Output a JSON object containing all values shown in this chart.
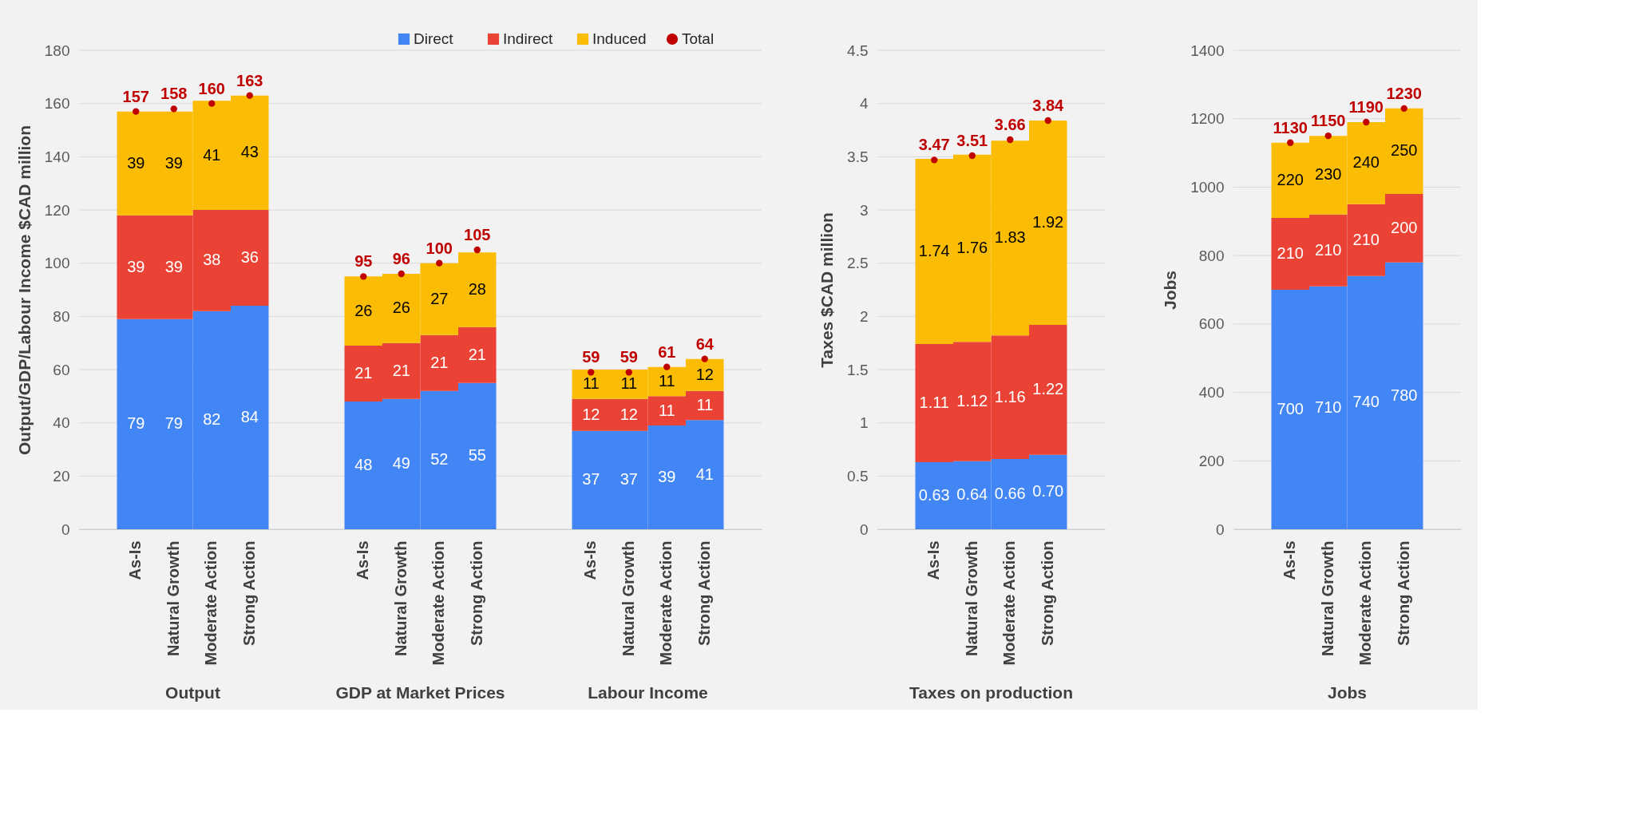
{
  "chart_data": [
    {
      "type": "bar",
      "stacked": true,
      "xlabel": "Output",
      "ylabel": "Output/GDP/Labour Income $CAD million",
      "categories": [
        "As-Is",
        "Natural Growth",
        "Moderate Action",
        "Strong Action"
      ],
      "ylim": [
        0,
        180
      ],
      "yticks": [
        0,
        20,
        40,
        60,
        80,
        100,
        120,
        140,
        160,
        180
      ],
      "grid": "y",
      "legend": "top right",
      "series": [
        {
          "name": "Direct",
          "color": "#4285f4",
          "values": [
            79,
            79,
            82,
            84
          ],
          "value_labels": [
            "79",
            "79",
            "82",
            "84"
          ]
        },
        {
          "name": "Indirect",
          "color": "#ea4335",
          "values": [
            39,
            39,
            38,
            36
          ],
          "value_labels": [
            "39",
            "39",
            "38",
            "36"
          ]
        },
        {
          "name": "Induced",
          "color": "#fbbc04",
          "values": [
            39,
            39,
            41,
            43
          ],
          "value_labels": [
            "39",
            "39",
            "41",
            "43"
          ]
        },
        {
          "name": "Total",
          "type": "scatter",
          "color": "#c00000",
          "values": [
            157,
            158,
            160,
            163
          ],
          "value_labels": [
            "157",
            "158",
            "160",
            "163"
          ]
        }
      ]
    },
    {
      "type": "bar",
      "stacked": true,
      "xlabel": "GDP at Market Prices",
      "categories": [
        "As-Is",
        "Natural Growth",
        "Moderate Action",
        "Strong Action"
      ],
      "ylim": [
        0,
        180
      ],
      "yticks": [
        0,
        20,
        40,
        60,
        80,
        100,
        120,
        140,
        160,
        180
      ],
      "grid": "y",
      "tick_labels": "x",
      "series": [
        {
          "color": "#4285f4",
          "values": [
            48,
            49,
            52,
            55
          ],
          "value_labels": [
            "48",
            "49",
            "52",
            "55"
          ]
        },
        {
          "color": "#ea4335",
          "values": [
            21,
            21,
            21,
            21
          ],
          "value_labels": [
            "21",
            "21",
            "21",
            "21"
          ]
        },
        {
          "color": "#fbbc04",
          "values": [
            26,
            26,
            27,
            28
          ],
          "value_labels": [
            "26",
            "26",
            "27",
            "28"
          ]
        },
        {
          "type": "scatter",
          "color": "#c00000",
          "values": [
            95,
            96,
            100,
            105
          ],
          "value_labels": [
            "95",
            "96",
            "100",
            "105"
          ]
        }
      ]
    },
    {
      "type": "bar",
      "stacked": true,
      "xlabel": "Labour Income",
      "categories": [
        "As-Is",
        "Natural Growth",
        "Moderate Action",
        "Strong Action"
      ],
      "ylim": [
        0,
        180
      ],
      "yticks": [
        0,
        20,
        40,
        60,
        80,
        100,
        120,
        140,
        160,
        180
      ],
      "grid": "y",
      "tick_labels": "x",
      "series": [
        {
          "color": "#4285f4",
          "values": [
            37,
            37,
            39,
            41
          ],
          "value_labels": [
            "37",
            "37",
            "39",
            "41"
          ]
        },
        {
          "color": "#ea4335",
          "values": [
            12,
            12,
            11,
            11
          ],
          "value_labels": [
            "12",
            "12",
            "11",
            "11"
          ]
        },
        {
          "color": "#fbbc04",
          "values": [
            11,
            11,
            11,
            12
          ],
          "value_labels": [
            "11",
            "11",
            "11",
            "12"
          ]
        },
        {
          "type": "scatter",
          "color": "#c00000",
          "values": [
            59,
            59,
            61,
            64
          ],
          "value_labels": [
            "59",
            "59",
            "61",
            "64"
          ]
        }
      ]
    },
    {
      "type": "bar",
      "stacked": true,
      "xlabel": "Taxes on production",
      "ylabel": "Taxes $CAD million",
      "categories": [
        "As-Is",
        "Natural Growth",
        "Moderate Action",
        "Strong Action"
      ],
      "ylim": [
        0,
        4.5
      ],
      "yticks": [
        0,
        0.5,
        1,
        1.5,
        2,
        2.5,
        3,
        3.5,
        4,
        4.5
      ],
      "grid": "y",
      "series": [
        {
          "color": "#4285f4",
          "values": [
            0.63,
            0.64,
            0.66,
            0.7
          ],
          "value_labels": [
            "0.63",
            "0.64",
            "0.66",
            "0.70"
          ]
        },
        {
          "color": "#ea4335",
          "values": [
            1.11,
            1.12,
            1.16,
            1.22
          ],
          "value_labels": [
            "1.11",
            "1.12",
            "1.16",
            "1.22"
          ]
        },
        {
          "color": "#fbbc04",
          "values": [
            1.74,
            1.76,
            1.83,
            1.92
          ],
          "value_labels": [
            "1.74",
            "1.76",
            "1.83",
            "1.92"
          ]
        },
        {
          "type": "scatter",
          "color": "#c00000",
          "values": [
            3.47,
            3.51,
            3.66,
            3.84
          ],
          "value_labels": [
            "3.47",
            "3.51",
            "3.66",
            "3.84"
          ]
        }
      ]
    },
    {
      "type": "bar",
      "stacked": true,
      "xlabel": "Jobs",
      "ylabel": "Jobs",
      "categories": [
        "As-Is",
        "Natural Growth",
        "Moderate Action",
        "Strong Action"
      ],
      "ylim": [
        0,
        1400
      ],
      "yticks": [
        0,
        200,
        400,
        600,
        800,
        1000,
        1200,
        1400
      ],
      "grid": "y",
      "series": [
        {
          "color": "#4285f4",
          "values": [
            700,
            710,
            740,
            780
          ],
          "value_labels": [
            "700",
            "710",
            "740",
            "780"
          ]
        },
        {
          "color": "#ea4335",
          "values": [
            210,
            210,
            210,
            200
          ],
          "value_labels": [
            "210",
            "210",
            "210",
            "200"
          ]
        },
        {
          "color": "#fbbc04",
          "values": [
            220,
            230,
            240,
            250
          ],
          "value_labels": [
            "220",
            "230",
            "240",
            "250"
          ]
        },
        {
          "type": "scatter",
          "color": "#c00000",
          "values": [
            1130,
            1150,
            1190,
            1230
          ],
          "value_labels": [
            "1130",
            "1150",
            "1190",
            "1230"
          ]
        }
      ]
    }
  ]
}
